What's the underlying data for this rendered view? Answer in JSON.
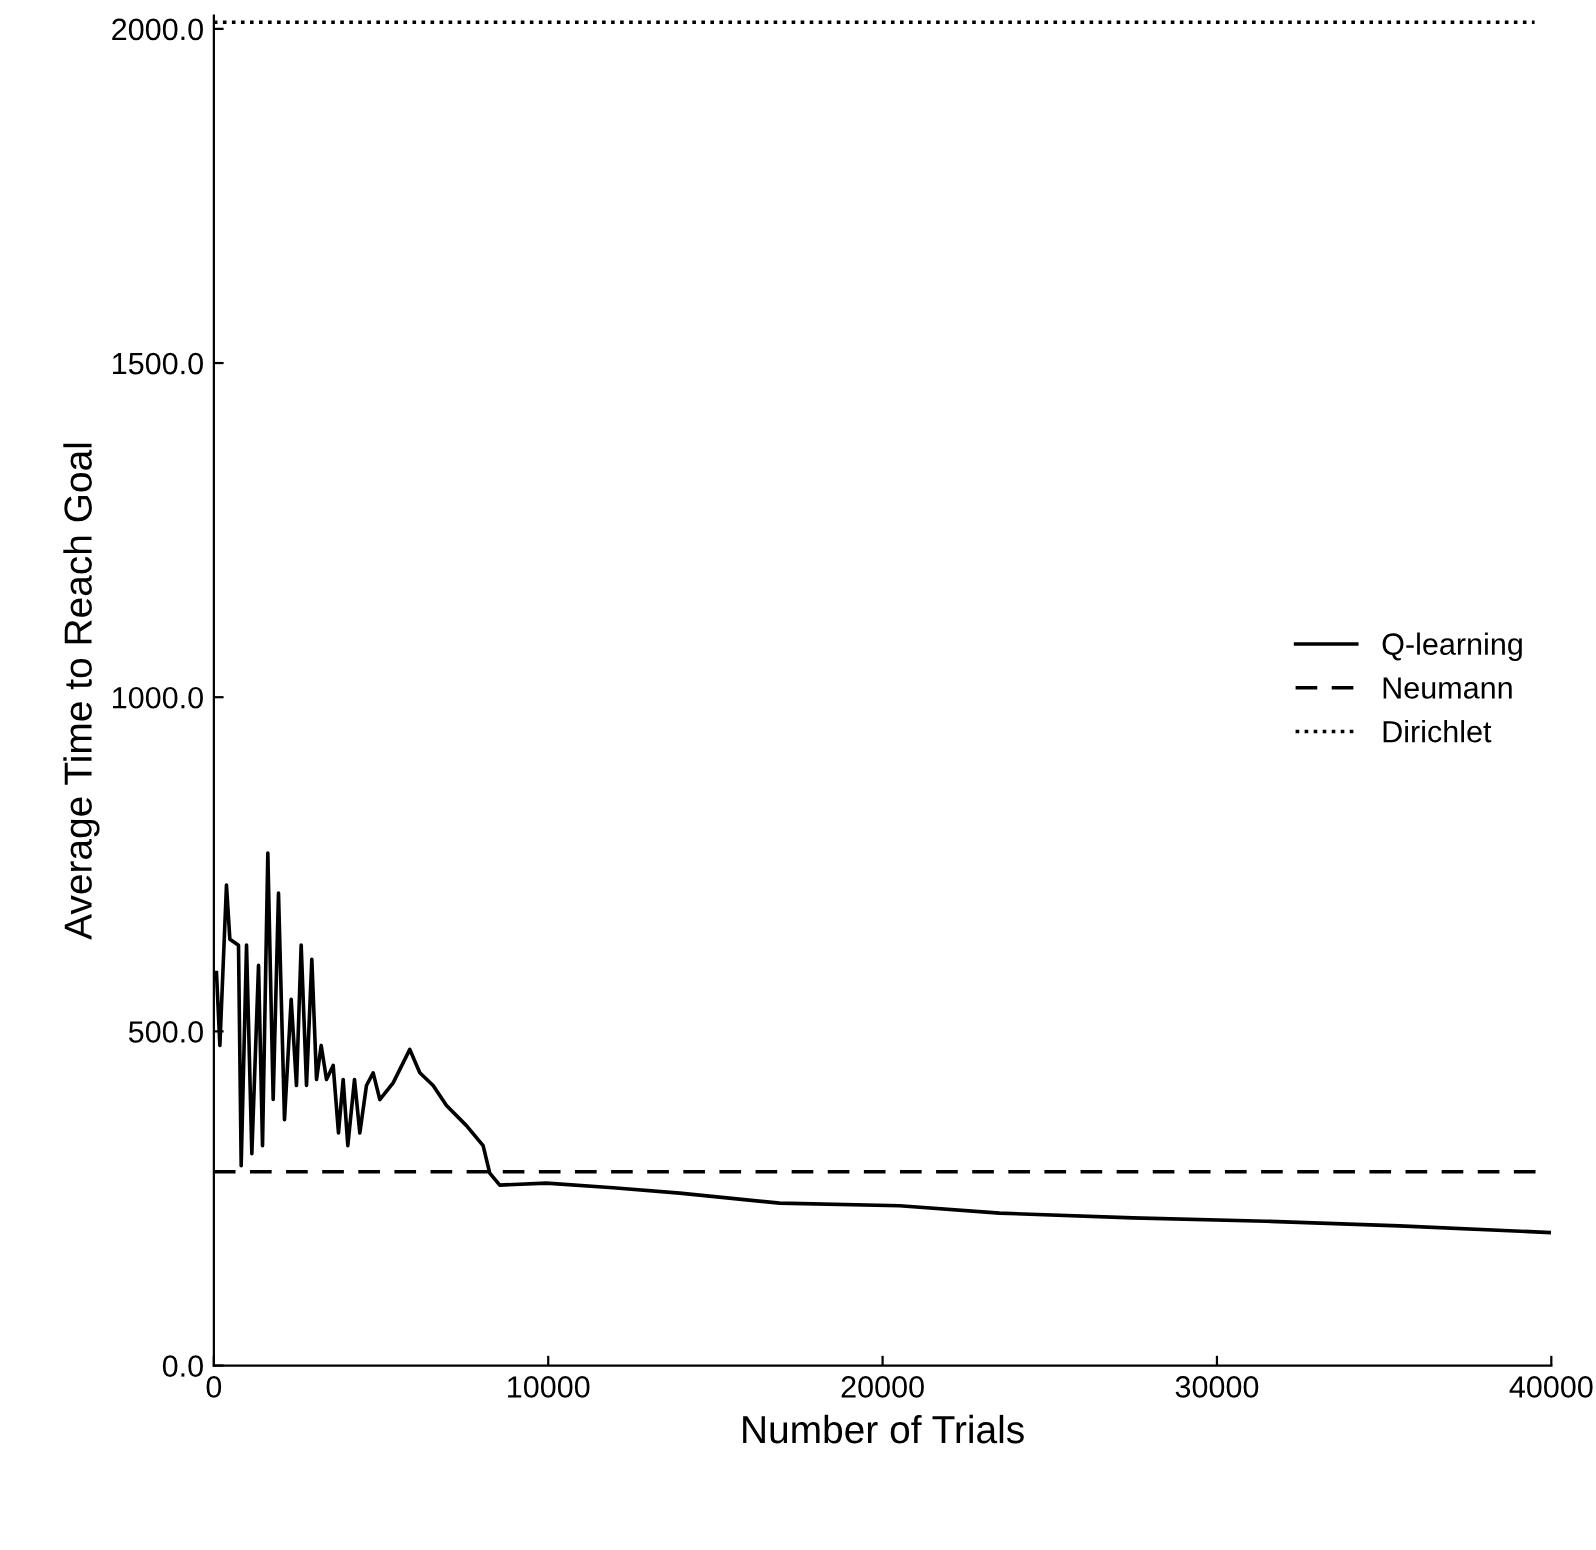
{
  "chart_data": {
    "type": "line",
    "xlabel": "Number of Trials",
    "ylabel": "Average Time to Reach Goal",
    "xlim": [
      0,
      40000
    ],
    "ylim": [
      0,
      2020
    ],
    "xticks": [
      0,
      10000,
      20000,
      30000,
      40000
    ],
    "yticks": [
      {
        "value": 0,
        "label": "0.0"
      },
      {
        "value": 500,
        "label": "500.0"
      },
      {
        "value": 1000,
        "label": "1000.0"
      },
      {
        "value": 1500,
        "label": "1500.0"
      },
      {
        "value": 2000,
        "label": "2000.0"
      }
    ],
    "grid": false,
    "legend": "center right",
    "marker": "none",
    "series": [
      {
        "name": "Q-learning",
        "color": "#000000",
        "line_style": "solid",
        "x": [
          78,
          180,
          377,
          478,
          737,
          817,
          977,
          1136,
          1336,
          1455,
          1614,
          1774,
          1933,
          2112,
          2312,
          2471,
          2611,
          2771,
          2930,
          3070,
          3210,
          3369,
          3568,
          3727,
          3867,
          4006,
          4206,
          4365,
          4564,
          4764,
          4963,
          5362,
          5860,
          6159,
          6558,
          6957,
          7554,
          8053,
          8251,
          8550,
          9944,
          11940,
          13931,
          16921,
          20508,
          23498,
          27483,
          31468,
          35453,
          39937
        ],
        "values": [
          588,
          479,
          719,
          638,
          629,
          299,
          629,
          317,
          599,
          329,
          767,
          398,
          707,
          368,
          548,
          419,
          629,
          419,
          608,
          428,
          479,
          428,
          449,
          348,
          428,
          329,
          428,
          348,
          419,
          438,
          398,
          423,
          473,
          438,
          419,
          389,
          359,
          329,
          288,
          270,
          273,
          266,
          258,
          243,
          239,
          228,
          221,
          216,
          209,
          199
        ]
      },
      {
        "name": "Neumann",
        "color": "#000000",
        "line_style": "dashed",
        "x": [
          0,
          39700
        ],
        "values": [
          290,
          290
        ]
      },
      {
        "name": "Dirichlet",
        "color": "#000000",
        "line_style": "dotted",
        "x": [
          0,
          39500
        ],
        "values": [
          2010,
          2010
        ]
      }
    ]
  }
}
